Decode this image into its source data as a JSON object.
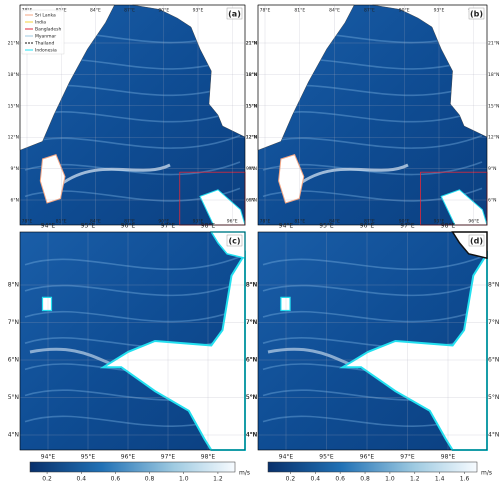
{
  "panels": [
    {
      "label": "(a)",
      "xticks": [
        "78°E",
        "81°E",
        "84°E",
        "87°E",
        "90°E",
        "93°E",
        "96°E"
      ],
      "yticks": [
        "6°N",
        "9°N",
        "12°N",
        "15°N",
        "18°N",
        "21°N"
      ]
    },
    {
      "label": "(b)",
      "xticks": [
        "78°E",
        "81°E",
        "84°E",
        "87°E",
        "90°E",
        "93°E",
        "96°E"
      ],
      "yticks": [
        "6°N",
        "9°N",
        "12°N",
        "15°N",
        "18°N",
        "21°N"
      ]
    },
    {
      "label": "(c)",
      "xticks": [
        "94°E",
        "95°E",
        "96°E",
        "97°E",
        "98°E"
      ],
      "yticks": [
        "4°N",
        "5°N",
        "6°N",
        "7°N",
        "8°N"
      ]
    },
    {
      "label": "(d)",
      "xticks": [
        "94°E",
        "95°E",
        "96°E",
        "97°E",
        "98°E"
      ],
      "yticks": [
        "4°N",
        "5°N",
        "6°N",
        "7°N",
        "8°N"
      ]
    }
  ],
  "legend": [
    {
      "name": "Sri Lanka",
      "color": "#f4a582"
    },
    {
      "name": "India",
      "color": "#f6d33c"
    },
    {
      "name": "Bangladesh",
      "color": "#e0283a"
    },
    {
      "name": "Myanmar",
      "color": "#9ecae1"
    },
    {
      "name": "Thailand",
      "color": "#111111"
    },
    {
      "name": "Indonesia",
      "color": "#22e0f0"
    }
  ],
  "colorbars": [
    {
      "unit": "m/s",
      "range": [
        0.1,
        1.3
      ],
      "ticks": [
        0.2,
        0.4,
        0.6,
        0.8,
        {
          "value": 1,
          "label": "1.0"
        },
        1.2
      ]
    },
    {
      "unit": "m/s",
      "range": [
        0.02,
        1.7
      ],
      "ticks": [
        0.2,
        0.4,
        0.6,
        0.8,
        {
          "value": 1,
          "label": "1.0"
        },
        1.2,
        1.4,
        1.6
      ]
    }
  ]
}
